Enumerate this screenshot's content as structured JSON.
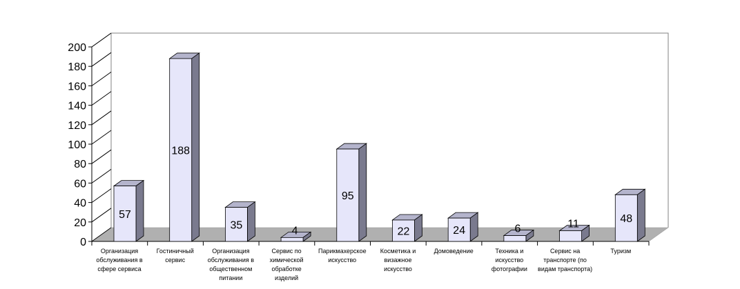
{
  "chart_data": {
    "type": "bar",
    "title": "",
    "xlabel": "",
    "ylabel": "",
    "ylim": [
      0,
      200
    ],
    "yticks": [
      0,
      20,
      40,
      60,
      80,
      100,
      120,
      140,
      160,
      180,
      200
    ],
    "categories": [
      "Организация обслуживания в сфере сервиса",
      "Гостиничный сервис",
      "Организация обслуживания в общественном питании",
      "Сервис по химической обработке изделий",
      "Парикмахерское искусство",
      "Косметика и визажное искусство",
      "Домоведение",
      "Техника и искусство фотографии",
      "Сервис на транспорте (по видам транспорта)",
      "Туризм"
    ],
    "values": [
      57,
      188,
      35,
      4,
      95,
      22,
      24,
      6,
      11,
      48
    ],
    "legend": "none",
    "grid": false,
    "colors": {
      "bar_front": "#e6e6fa",
      "bar_side": "#7a7a8e",
      "bar_top": "#b4b4cc",
      "floor": "#b0b0b0",
      "wall_line": "#808080"
    }
  }
}
